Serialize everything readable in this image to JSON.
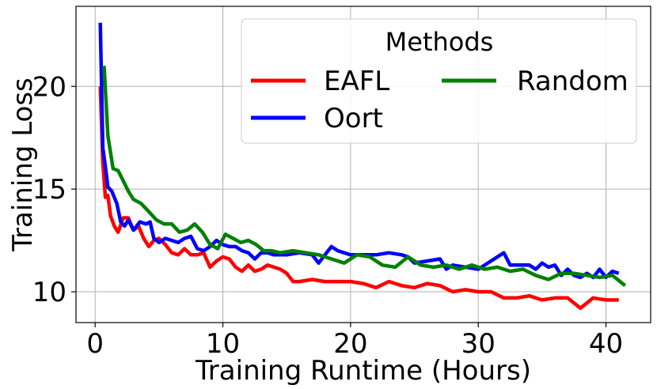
{
  "chart_data": {
    "type": "line",
    "title": "",
    "xlabel": "Training Runtime (Hours)",
    "ylabel": "Training Loss",
    "xlim": [
      -1.5,
      43.5
    ],
    "ylim": [
      8.5,
      23.9
    ],
    "xticks": [
      0,
      10,
      20,
      30,
      40
    ],
    "yticks": [
      10,
      15,
      20
    ],
    "xtick_labels": [
      "0",
      "10",
      "20",
      "30",
      "40"
    ],
    "ytick_labels": [
      "10",
      "15",
      "20"
    ],
    "grid": true,
    "legend": {
      "title": "Methods",
      "placement": "top-right",
      "columns": 2,
      "order": [
        "EAFL",
        "Oort",
        "Random"
      ]
    },
    "series": [
      {
        "name": "EAFL",
        "color": "#ff0000",
        "x": [
          0.4,
          0.6,
          0.8,
          1.0,
          1.2,
          1.5,
          1.8,
          2.2,
          2.6,
          3.0,
          3.4,
          3.8,
          4.2,
          4.6,
          5.0,
          5.5,
          6.0,
          6.5,
          7.0,
          7.5,
          8.0,
          8.5,
          9.0,
          9.5,
          10.0,
          10.5,
          11.0,
          11.5,
          12.0,
          12.5,
          13.0,
          13.5,
          14.0,
          14.5,
          15.0,
          15.5,
          16.0,
          17.0,
          18.0,
          19.0,
          20.0,
          21.0,
          22.0,
          23.0,
          24.0,
          25.0,
          26.0,
          27.0,
          28.0,
          29.0,
          30.0,
          31.0,
          32.0,
          33.0,
          34.0,
          35.0,
          36.0,
          37.0,
          38.0,
          39.0,
          40.0,
          41.0
        ],
        "y": [
          20.0,
          16.3,
          14.6,
          14.7,
          13.7,
          13.2,
          12.9,
          13.6,
          13.6,
          13.0,
          13.2,
          12.6,
          12.2,
          12.5,
          12.6,
          12.3,
          11.9,
          11.8,
          12.1,
          11.8,
          11.8,
          11.9,
          11.2,
          11.5,
          11.7,
          11.6,
          11.2,
          11.0,
          11.3,
          11.0,
          11.1,
          11.3,
          11.2,
          11.1,
          10.9,
          10.5,
          10.5,
          10.6,
          10.5,
          10.5,
          10.5,
          10.4,
          10.2,
          10.5,
          10.3,
          10.2,
          10.4,
          10.3,
          10.0,
          10.1,
          10.0,
          10.0,
          9.7,
          9.7,
          9.8,
          9.6,
          9.7,
          9.7,
          9.2,
          9.7,
          9.6,
          9.6
        ]
      },
      {
        "name": "Oort",
        "color": "#0000ff",
        "x": [
          0.4,
          0.6,
          0.8,
          1.0,
          1.3,
          1.7,
          2.0,
          2.3,
          2.6,
          3.0,
          3.5,
          4.0,
          4.3,
          4.6,
          5.0,
          5.5,
          6.0,
          6.5,
          7.0,
          7.5,
          8.0,
          8.5,
          9.0,
          9.5,
          10.0,
          10.5,
          11.0,
          11.5,
          12.0,
          12.5,
          13.0,
          13.5,
          14.0,
          15.0,
          16.0,
          17.0,
          17.5,
          18.0,
          18.5,
          19.0,
          20.0,
          21.0,
          22.0,
          23.0,
          24.0,
          24.5,
          25.0,
          26.0,
          27.0,
          27.5,
          28.0,
          29.0,
          30.0,
          31.0,
          32.0,
          32.5,
          33.0,
          34.0,
          34.5,
          35.0,
          35.5,
          36.0,
          36.5,
          37.0,
          37.5,
          38.0,
          38.5,
          39.0,
          39.5,
          40.0,
          40.5,
          41.0
        ],
        "y": [
          23.1,
          17.0,
          16.1,
          15.1,
          14.9,
          14.3,
          13.4,
          13.2,
          13.5,
          13.0,
          13.4,
          13.3,
          13.4,
          12.6,
          12.4,
          12.6,
          12.5,
          12.4,
          12.6,
          12.7,
          12.1,
          12.0,
          12.2,
          12.5,
          12.3,
          12.2,
          12.2,
          12.0,
          11.9,
          11.6,
          11.9,
          11.9,
          11.8,
          11.8,
          11.9,
          11.8,
          11.4,
          11.8,
          12.2,
          12.0,
          11.8,
          11.8,
          11.8,
          11.9,
          11.8,
          11.7,
          11.4,
          11.5,
          11.6,
          11.1,
          11.3,
          11.2,
          11.1,
          11.5,
          11.9,
          11.3,
          11.3,
          11.3,
          11.1,
          11.4,
          11.2,
          11.3,
          10.8,
          11.1,
          10.8,
          10.7,
          10.9,
          10.7,
          11.1,
          10.7,
          11.0,
          10.9
        ]
      },
      {
        "name": "Random",
        "color": "#008000",
        "x": [
          0.7,
          1.0,
          1.4,
          1.8,
          2.2,
          2.6,
          3.0,
          3.6,
          4.2,
          4.8,
          5.4,
          6.0,
          6.6,
          7.2,
          7.8,
          8.4,
          9.0,
          9.6,
          10.2,
          10.8,
          11.4,
          12.0,
          12.6,
          13.2,
          13.8,
          14.5,
          15.5,
          16.5,
          17.5,
          18.5,
          19.5,
          20.5,
          21.5,
          22.5,
          23.5,
          24.5,
          25.5,
          26.5,
          27.5,
          28.5,
          29.5,
          30.5,
          31.5,
          32.5,
          33.5,
          34.5,
          35.5,
          36.5,
          37.5,
          38.5,
          39.5,
          40.5,
          41.5
        ],
        "y": [
          21.0,
          17.6,
          16.0,
          15.9,
          15.4,
          14.9,
          14.5,
          14.3,
          13.9,
          13.5,
          13.3,
          13.3,
          12.9,
          13.0,
          13.3,
          12.9,
          12.3,
          12.1,
          12.8,
          12.6,
          12.4,
          12.5,
          12.3,
          12.0,
          12.0,
          11.9,
          12.0,
          11.9,
          11.8,
          11.6,
          11.4,
          11.8,
          11.7,
          11.3,
          11.2,
          11.7,
          11.3,
          11.2,
          11.3,
          11.1,
          11.3,
          11.1,
          11.2,
          11.0,
          11.1,
          10.8,
          10.6,
          10.9,
          10.9,
          10.8,
          10.7,
          10.8,
          10.3
        ]
      }
    ]
  }
}
